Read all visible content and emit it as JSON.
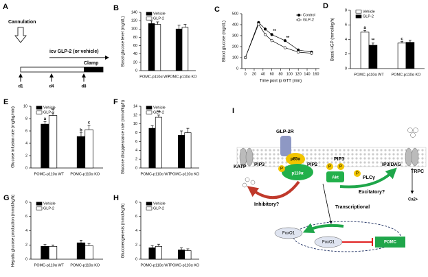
{
  "panel_a": {
    "letter": "A",
    "cannulation": "Cannulation",
    "treatment": "icv GLP-2 (or vehicle)",
    "clamp": "Clamp",
    "days": [
      "d1",
      "d4",
      "d8"
    ]
  },
  "chart_data": [
    {
      "type": "bar",
      "panel": "B",
      "ylabel": "Basal glucose level (mg/dL)",
      "categories": [
        "POMC-p110α WT",
        "POMC-p110α KO"
      ],
      "series": [
        {
          "name": "Vehicle",
          "color": "#000000",
          "values": [
            113,
            100
          ],
          "errors": [
            6,
            9
          ]
        },
        {
          "name": "GLP-2",
          "color": "#ffffff",
          "values": [
            111,
            104
          ],
          "errors": [
            6,
            7
          ]
        }
      ],
      "ylim": [
        0,
        140
      ],
      "yticks": [
        0,
        20,
        40,
        60,
        80,
        100,
        120,
        140
      ],
      "legend": "upper left"
    },
    {
      "type": "line",
      "panel": "C",
      "ylabel": "Blood glucose (mg/dL)",
      "xlabel": "Time post ip GTT (min)",
      "x": [
        0,
        30,
        45,
        60,
        90,
        120,
        150
      ],
      "series": [
        {
          "name": "Control",
          "color": "#000000",
          "values": [
            100,
            420,
            360,
            310,
            255,
            170,
            150
          ]
        },
        {
          "name": "GLP-2",
          "color": "#ffffff",
          "values": [
            100,
            405,
            310,
            255,
            190,
            150,
            140
          ],
          "annotations": [
            null,
            null,
            null,
            "**",
            "**",
            null,
            null
          ]
        }
      ],
      "xlim": [
        -8,
        168
      ],
      "xticks": [
        0,
        20,
        40,
        60,
        80,
        100,
        120,
        140,
        160
      ],
      "ylim": [
        0,
        500
      ],
      "yticks": [
        0,
        100,
        200,
        300,
        400,
        500
      ],
      "legend": "upper right"
    },
    {
      "type": "bar",
      "panel": "D",
      "ylabel": "Basal HGP (mmol/kg/h)",
      "categories": [
        "POMC-p110α WT",
        "POMC-p110α KO"
      ],
      "series": [
        {
          "name": "Vehicle",
          "color": "#ffffff",
          "values": [
            5.0,
            3.5
          ],
          "errors": [
            0.25,
            0.2
          ],
          "annotations": [
            "a",
            "c"
          ]
        },
        {
          "name": "GLP-2",
          "color": "#000000",
          "values": [
            3.2,
            3.6
          ],
          "errors": [
            0.3,
            0.3
          ],
          "annotations": [
            "**",
            null
          ]
        }
      ],
      "ylim": [
        0,
        8
      ],
      "yticks": [
        0,
        2,
        4,
        6,
        8
      ],
      "legend": "upper left"
    },
    {
      "type": "bar",
      "panel": "E",
      "ylabel": "Glucose infusion rate (mg/kg/min)",
      "categories": [
        "POMC-p110α WT",
        "POMC-p110α KO"
      ],
      "series": [
        {
          "name": "Vehicle",
          "color": "#000000",
          "values": [
            7.1,
            5.1
          ],
          "errors": [
            0.4,
            0.6
          ],
          "annotations": [
            "a",
            "b"
          ]
        },
        {
          "name": "GLP-2",
          "color": "#ffffff",
          "values": [
            8.5,
            6.2
          ],
          "errors": [
            0.4,
            0.7
          ],
          "annotations": [
            "**",
            "c"
          ]
        }
      ],
      "ylim": [
        0,
        10
      ],
      "yticks": [
        0,
        2,
        4,
        6,
        8,
        10
      ],
      "legend": "upper left"
    },
    {
      "type": "bar",
      "panel": "F",
      "ylabel": "Glucose disappearance rate (mmol/kg/h)",
      "categories": [
        "POMC-p110α WT",
        "POMC-p110α KO"
      ],
      "series": [
        {
          "name": "Vehicle",
          "color": "#000000",
          "values": [
            9.0,
            7.4
          ],
          "errors": [
            0.6,
            1.0
          ]
        },
        {
          "name": "GLP-2",
          "color": "#ffffff",
          "values": [
            11.5,
            8.0
          ],
          "errors": [
            0.5,
            1.0
          ],
          "annotations": [
            "**",
            null
          ]
        }
      ],
      "ylim": [
        0,
        14
      ],
      "yticks": [
        0,
        2,
        4,
        6,
        8,
        10,
        12,
        14
      ],
      "legend": "upper left"
    },
    {
      "type": "bar",
      "panel": "G",
      "ylabel": "Hepatic glucose production (mmol/kg/h)",
      "categories": [
        "POMC-p110α WT",
        "POMC-p110α KO"
      ],
      "series": [
        {
          "name": "Vehicle",
          "color": "#000000",
          "values": [
            1.8,
            2.3
          ],
          "errors": [
            0.25,
            0.35
          ]
        },
        {
          "name": "GLP-2",
          "color": "#ffffff",
          "values": [
            1.8,
            1.9
          ],
          "errors": [
            0.2,
            0.3
          ]
        }
      ],
      "ylim": [
        0,
        8
      ],
      "yticks": [
        0,
        2,
        4,
        6,
        8
      ],
      "legend": "upper left"
    },
    {
      "type": "bar",
      "panel": "H",
      "ylabel": "Gluconeogenesis (mmol/kg/h)",
      "categories": [
        "POMC-p110α WT",
        "POMC-p110α KO"
      ],
      "series": [
        {
          "name": "Vehicle",
          "color": "#000000",
          "values": [
            1.6,
            1.3
          ],
          "errors": [
            0.3,
            0.3
          ]
        },
        {
          "name": "GLP-2",
          "color": "#ffffff",
          "values": [
            1.8,
            1.2
          ],
          "errors": [
            0.3,
            0.25
          ]
        }
      ],
      "ylim": [
        0,
        8
      ],
      "yticks": [
        0,
        2,
        4,
        6,
        8
      ],
      "legend": "upper left"
    }
  ],
  "panel_i": {
    "letter": "I",
    "receptor": "GLP-2R",
    "katp": "KATP",
    "pip3_left": "PIP3",
    "p85": "p85α",
    "pip2": "PIP2",
    "pip3_right": "PIP3",
    "p110": "p110α",
    "akt": "Akt",
    "plc": "PLCγ",
    "ip3dag": "IP3/DAG",
    "trpc": "TRPC",
    "calcium": "Ca2+",
    "inhibitory": "Inhibitory?",
    "excitatory": "Excitatory?",
    "transcriptional": "Transcriptional",
    "foxo1_out": "FoxO1",
    "foxo1_in": "FoxO1",
    "pomc": "POMC",
    "phospho": [
      "P",
      "P",
      "P",
      "P"
    ]
  }
}
